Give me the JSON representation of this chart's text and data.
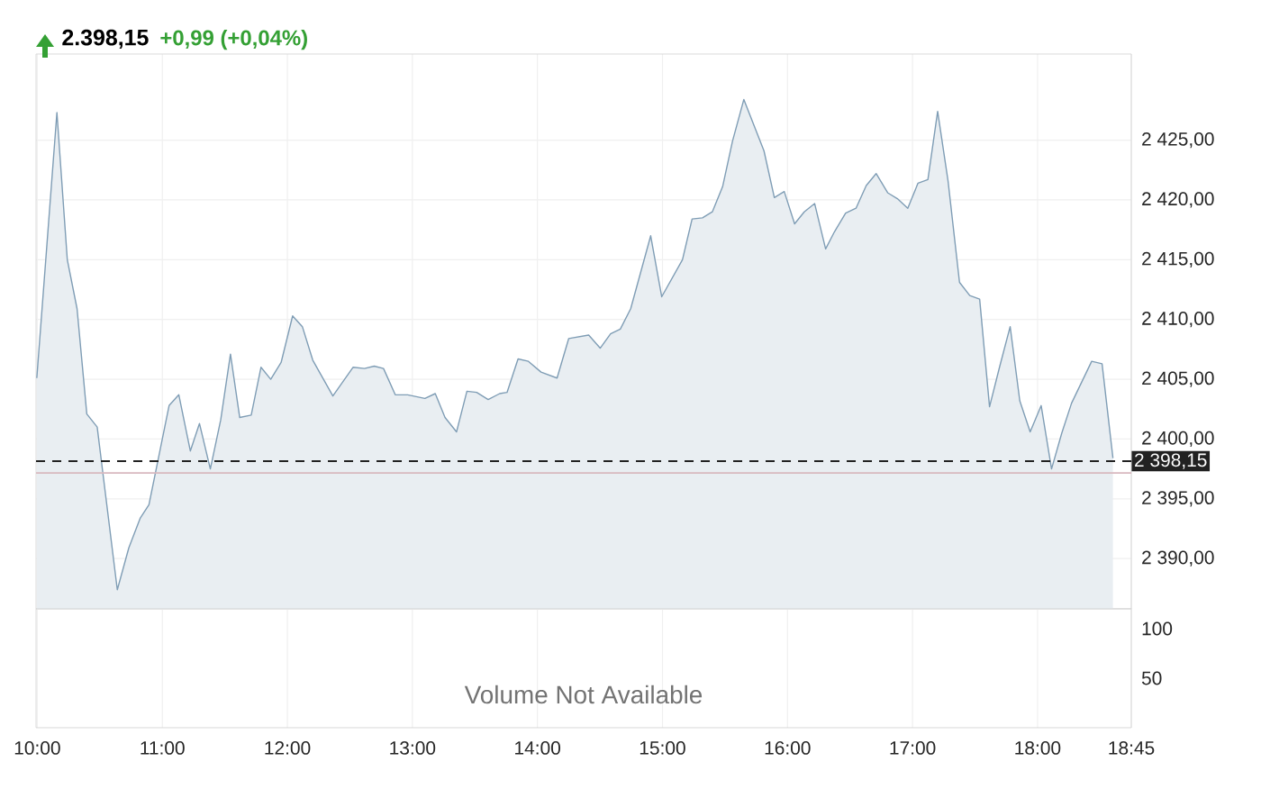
{
  "chart_data": [
    {
      "type": "area",
      "title": "2.398,15",
      "subtitle": "+0,99 (+0,04%)",
      "color": "#7f9db5",
      "grid": true,
      "tick_labels": "y",
      "x": [
        9.996,
        10.157,
        10.24,
        10.318,
        10.396,
        10.479,
        10.64,
        10.732,
        10.824,
        10.893,
        11.054,
        11.132,
        11.224,
        11.297,
        11.384,
        11.467,
        11.545,
        11.619,
        11.711,
        11.789,
        11.867,
        11.95,
        12.042,
        12.12,
        12.203,
        12.364,
        12.525,
        12.617,
        12.695,
        12.769,
        12.863,
        12.962,
        13.1,
        13.183,
        13.261,
        13.353,
        13.436,
        13.514,
        13.606,
        13.698,
        13.757,
        13.845,
        13.928,
        14.029,
        14.157,
        14.25,
        14.41,
        14.502,
        14.585,
        14.663,
        14.746,
        14.906,
        14.994,
        15.16,
        15.237,
        15.32,
        15.399,
        15.481,
        15.56,
        15.651,
        15.812,
        15.895,
        15.974,
        16.057,
        16.134,
        16.217,
        16.305,
        16.374,
        16.465,
        16.548,
        16.63,
        16.709,
        16.801,
        16.879,
        16.962,
        17.044,
        17.123,
        17.201,
        17.284,
        17.376,
        17.458,
        17.537,
        17.616,
        17.698,
        17.781,
        17.858,
        17.941,
        18.029,
        18.112,
        18.194,
        18.272,
        18.433,
        18.516,
        18.603
      ],
      "values": [
        2405.1,
        2427.3,
        2415.0,
        2410.9,
        2402.1,
        2401.0,
        2387.4,
        2390.9,
        2393.4,
        2394.5,
        2402.8,
        2403.7,
        2399.0,
        2401.3,
        2397.5,
        2401.6,
        2407.1,
        2401.8,
        2402.0,
        2406.0,
        2405.0,
        2406.4,
        2410.3,
        2409.4,
        2406.6,
        2403.6,
        2406.0,
        2405.9,
        2406.1,
        2405.9,
        2403.7,
        2403.7,
        2403.4,
        2403.8,
        2401.8,
        2400.6,
        2404.0,
        2403.9,
        2403.3,
        2403.8,
        2403.9,
        2406.7,
        2406.5,
        2405.6,
        2405.1,
        2408.4,
        2408.7,
        2407.6,
        2408.8,
        2409.2,
        2410.9,
        2417.0,
        2411.9,
        2415.0,
        2418.4,
        2418.5,
        2419.0,
        2421.1,
        2424.9,
        2428.4,
        2424.1,
        2420.2,
        2420.7,
        2418.0,
        2419.0,
        2419.7,
        2415.9,
        2417.3,
        2418.9,
        2419.3,
        2421.2,
        2422.2,
        2420.6,
        2420.1,
        2419.3,
        2421.4,
        2421.7,
        2427.4,
        2421.6,
        2413.1,
        2412.0,
        2411.7,
        2402.7,
        2406.1,
        2409.4,
        2403.2,
        2400.6,
        2402.8,
        2397.5,
        2400.5,
        2403.0,
        2406.5,
        2406.3,
        2398.4
      ],
      "xlim": [
        9.99,
        18.75
      ],
      "xticks": [
        10,
        11,
        12,
        13,
        14,
        15,
        16,
        17,
        18,
        18.75
      ],
      "ylim": [
        2385.8,
        2432.2
      ],
      "yticks": [
        {
          "value": 2390,
          "label": "2 390,00"
        },
        {
          "value": 2395,
          "label": "2 395,00"
        },
        {
          "value": 2400,
          "label": "2 400,00"
        },
        {
          "value": 2405,
          "label": "2 405,00"
        },
        {
          "value": 2410,
          "label": "2 410,00"
        },
        {
          "value": 2415,
          "label": "2 415,00"
        },
        {
          "value": 2420,
          "label": "2 420,00"
        },
        {
          "value": 2425,
          "label": "2 425,00"
        }
      ],
      "ref_lines": [
        {
          "axis": "y",
          "value": 2398.15,
          "label": "2 398,15",
          "color": "#222222",
          "line_style": "dashed"
        },
        {
          "axis": "y",
          "value": 2397.16,
          "label": null,
          "color": "#d8b9bf",
          "line_style": "solid"
        }
      ]
    },
    {
      "type": "line",
      "grid": "x",
      "annotations": [
        "Volume Not Available"
      ],
      "xlim": [
        9.99,
        18.75
      ],
      "xticks": [
        {
          "value": 10,
          "label": "10:00"
        },
        {
          "value": 11,
          "label": "11:00"
        },
        {
          "value": 12,
          "label": "12:00"
        },
        {
          "value": 13,
          "label": "13:00"
        },
        {
          "value": 14,
          "label": "14:00"
        },
        {
          "value": 15,
          "label": "15:00"
        },
        {
          "value": 16,
          "label": "16:00"
        },
        {
          "value": 17,
          "label": "17:00"
        },
        {
          "value": 18,
          "label": "18:00"
        },
        {
          "value": 18.75,
          "label": "18:45"
        }
      ],
      "ylim": [
        0,
        120
      ],
      "yticks": [
        50,
        100
      ]
    }
  ]
}
